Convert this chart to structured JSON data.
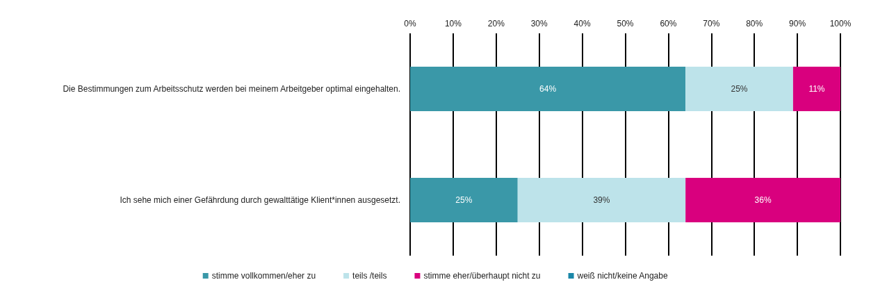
{
  "chart_data": {
    "type": "bar",
    "orientation": "horizontal",
    "stacked": true,
    "categories": [
      "Die Bestimmungen zum Arbeitsschutz werden bei meinem Arbeitgeber optimal eingehalten.",
      "Ich sehe mich einer Gefährdung durch gewalttätige Klient*innen ausgesetzt."
    ],
    "series": [
      {
        "name": "stimme vollkommen/eher zu",
        "color": "#3a98a8",
        "values": [
          64,
          25
        ],
        "value_labels": [
          "64%",
          "25%"
        ]
      },
      {
        "name": "teils /teils",
        "color": "#bde3ea",
        "values": [
          25,
          39
        ],
        "value_labels": [
          "25%",
          "39%"
        ]
      },
      {
        "name": "stimme eher/überhaupt nicht zu",
        "color": "#d9007e",
        "values": [
          11,
          36
        ],
        "value_labels": [
          "11%",
          "36%"
        ]
      },
      {
        "name": "weiß nicht/keine Angabe",
        "color": "#1a87a8",
        "values": [
          0,
          0
        ],
        "value_labels": [
          null,
          null
        ]
      }
    ],
    "xlim": [
      0,
      100
    ],
    "xticks": [
      {
        "value": 0,
        "label": "0%"
      },
      {
        "value": 10,
        "label": "10%"
      },
      {
        "value": 20,
        "label": "20%"
      },
      {
        "value": 30,
        "label": "30%"
      },
      {
        "value": 40,
        "label": "40%"
      },
      {
        "value": 50,
        "label": "50%"
      },
      {
        "value": 60,
        "label": "60%"
      },
      {
        "value": 70,
        "label": "70%"
      },
      {
        "value": 80,
        "label": "80%"
      },
      {
        "value": 90,
        "label": "90%"
      },
      {
        "value": 100,
        "label": "100%"
      }
    ],
    "grid": "x",
    "legend": "bottom"
  }
}
